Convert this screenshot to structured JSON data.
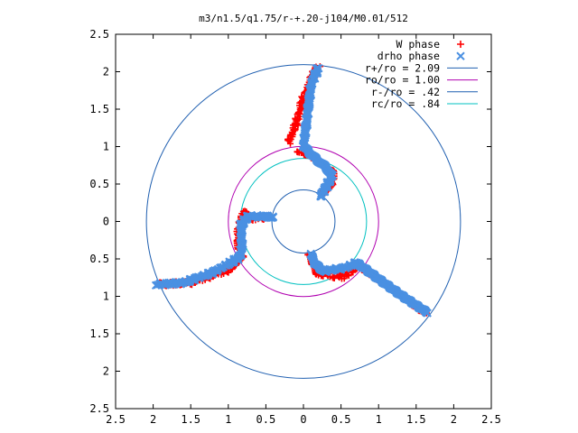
{
  "chart_data": {
    "type": "scatter",
    "title": "m3/n1.5/q1.75/r-+.20-j104/M0.01/512",
    "xlabel": "",
    "ylabel": "",
    "xlim": [
      -2.5,
      2.5
    ],
    "ylim": [
      -2.5,
      2.5
    ],
    "x_tick_values": [
      -2.5,
      -2,
      -1.5,
      -1,
      -0.5,
      0,
      0.5,
      1,
      1.5,
      2,
      2.5
    ],
    "x_tick_labels": [
      "2.5",
      "2",
      "1.5",
      "1",
      "0.5",
      "0",
      "0.5",
      "1",
      "1.5",
      "2",
      "2.5"
    ],
    "y_tick_values": [
      2.5,
      2,
      1.5,
      1,
      0.5,
      0,
      -0.5,
      -1,
      -1.5,
      -2,
      -2.5
    ],
    "y_tick_labels": [
      "2.5",
      "2",
      "1.5",
      "1",
      "0.5",
      "0",
      "0.5",
      "1",
      "1.5",
      "2",
      "2.5"
    ],
    "grid": false,
    "legend_position": "top-right",
    "series": [
      {
        "name": "W phase",
        "kind": "points",
        "marker": "plus",
        "color": "#ff0000",
        "arms": [
          [
            [
              -0.2,
              1.05
            ],
            [
              -0.1,
              1.3
            ],
            [
              0.0,
              1.65
            ],
            [
              0.15,
              2.0
            ],
            [
              0.2,
              2.08
            ]
          ],
          [
            [
              -0.07,
              0.95
            ],
            [
              0.2,
              0.78
            ],
            [
              0.38,
              0.65
            ],
            [
              0.4,
              0.52
            ],
            [
              0.25,
              0.38
            ]
          ],
          [
            [
              -0.45,
              0.06
            ],
            [
              -0.65,
              0.04
            ],
            [
              -0.8,
              0.12
            ],
            [
              -0.88,
              -0.2
            ],
            [
              -0.82,
              -0.5
            ],
            [
              -1.0,
              -0.65
            ],
            [
              -1.5,
              -0.82
            ],
            [
              -1.92,
              -0.84
            ]
          ],
          [
            [
              0.08,
              -0.42
            ],
            [
              0.2,
              -0.7
            ],
            [
              0.5,
              -0.75
            ],
            [
              0.72,
              -0.6
            ],
            [
              1.0,
              -0.8
            ],
            [
              1.35,
              -1.05
            ],
            [
              1.66,
              -1.22
            ]
          ]
        ]
      },
      {
        "name": "drho phase",
        "kind": "points",
        "marker": "cross",
        "color": "#4a90e2",
        "arms": [
          [
            [
              0.2,
              2.06
            ],
            [
              0.1,
              1.82
            ],
            [
              0.05,
              1.4
            ],
            [
              0.0,
              1.0
            ],
            [
              0.2,
              0.82
            ],
            [
              0.38,
              0.62
            ],
            [
              0.3,
              0.45
            ],
            [
              0.22,
              0.32
            ]
          ],
          [
            [
              -0.4,
              0.06
            ],
            [
              -0.6,
              0.07
            ],
            [
              -0.75,
              0.06
            ],
            [
              -0.83,
              -0.05
            ],
            [
              -0.82,
              -0.35
            ],
            [
              -0.85,
              -0.48
            ],
            [
              -1.2,
              -0.68
            ],
            [
              -1.6,
              -0.82
            ],
            [
              -1.95,
              -0.84
            ]
          ],
          [
            [
              0.1,
              -0.42
            ],
            [
              0.15,
              -0.55
            ],
            [
              0.28,
              -0.66
            ],
            [
              0.55,
              -0.62
            ],
            [
              0.72,
              -0.55
            ],
            [
              0.95,
              -0.72
            ],
            [
              1.3,
              -0.97
            ],
            [
              1.66,
              -1.22
            ]
          ]
        ]
      },
      {
        "name": "r+/ro = 2.09",
        "kind": "circle",
        "radius": 2.09,
        "color": "#1f5fb0"
      },
      {
        "name": "ro/ro = 1.00",
        "kind": "circle",
        "radius": 1.0,
        "color": "#b000b0"
      },
      {
        "name": "r-/ro = .42",
        "kind": "circle",
        "radius": 0.42,
        "color": "#1f5fb0"
      },
      {
        "name": "rc/ro = .84",
        "kind": "circle",
        "radius": 0.84,
        "color": "#00c0c0"
      }
    ]
  }
}
